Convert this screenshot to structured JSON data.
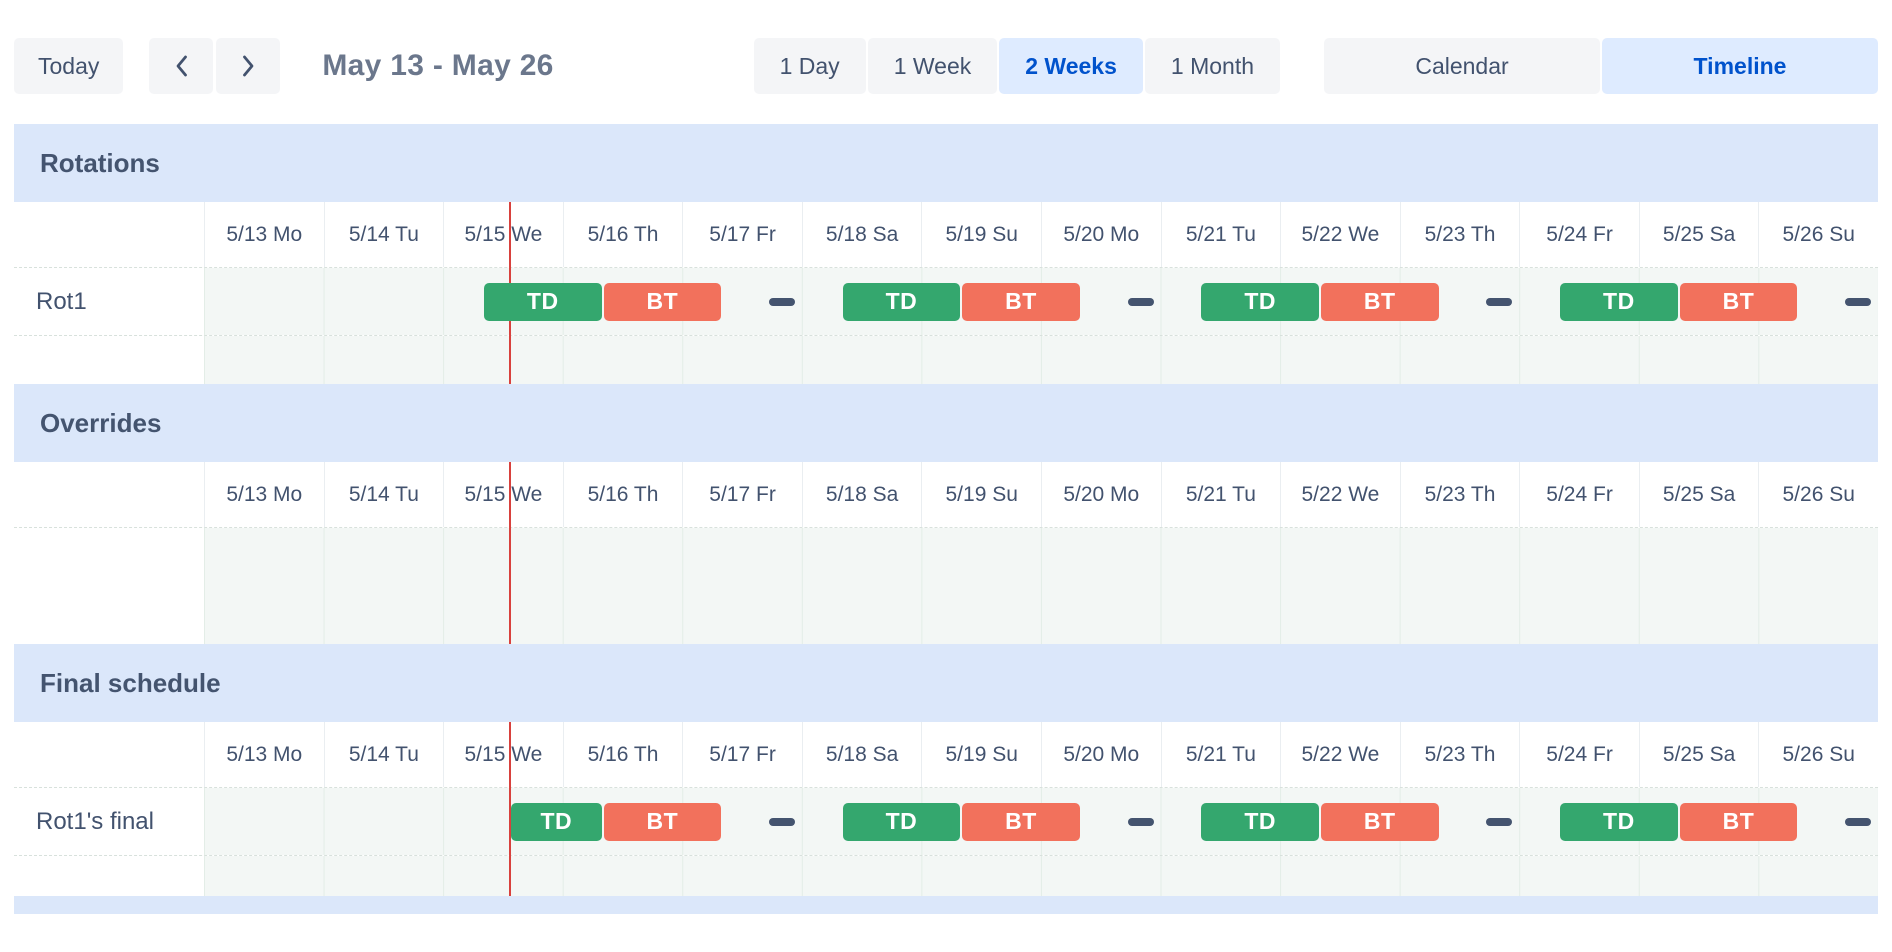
{
  "toolbar": {
    "today_label": "Today",
    "date_range_title": "May 13 - May 26",
    "zoom_options": [
      {
        "label": "1 Day",
        "selected": false
      },
      {
        "label": "1 Week",
        "selected": false
      },
      {
        "label": "2 Weeks",
        "selected": true
      },
      {
        "label": "1 Month",
        "selected": false
      }
    ],
    "view_options": [
      {
        "label": "Calendar",
        "selected": false
      },
      {
        "label": "Timeline",
        "selected": true
      }
    ]
  },
  "timeline": {
    "total_days": 14,
    "days": [
      "5/13 Mo",
      "5/14 Tu",
      "5/15 We",
      "5/16 Th",
      "5/17 Fr",
      "5/18 Sa",
      "5/19 Su",
      "5/20 Mo",
      "5/21 Tu",
      "5/22 We",
      "5/23 Th",
      "5/24 Fr",
      "5/25 Sa",
      "5/26 Su"
    ],
    "now_marker_day_offset": 2.55
  },
  "sections": [
    {
      "title": "Rotations",
      "rows": [
        {
          "label": "Rot1",
          "shifts": [
            {
              "type": "bar",
              "label": "TD",
              "color": "green",
              "start": 2.333,
              "end": 3.333
            },
            {
              "type": "bar",
              "label": "BT",
              "color": "orange",
              "start": 3.333,
              "end": 4.333
            },
            {
              "type": "gap",
              "center": 4.833
            },
            {
              "type": "bar",
              "label": "TD",
              "color": "green",
              "start": 5.333,
              "end": 6.333
            },
            {
              "type": "bar",
              "label": "BT",
              "color": "orange",
              "start": 6.333,
              "end": 7.333
            },
            {
              "type": "gap",
              "center": 7.833
            },
            {
              "type": "bar",
              "label": "TD",
              "color": "green",
              "start": 8.333,
              "end": 9.333
            },
            {
              "type": "bar",
              "label": "BT",
              "color": "orange",
              "start": 9.333,
              "end": 10.333
            },
            {
              "type": "gap",
              "center": 10.833
            },
            {
              "type": "bar",
              "label": "TD",
              "color": "green",
              "start": 11.333,
              "end": 12.333
            },
            {
              "type": "bar",
              "label": "BT",
              "color": "orange",
              "start": 12.333,
              "end": 13.333
            },
            {
              "type": "gap",
              "center": 13.833
            }
          ]
        }
      ]
    },
    {
      "title": "Overrides",
      "rows": []
    },
    {
      "title": "Final schedule",
      "rows": [
        {
          "label": "Rot1's final",
          "shifts": [
            {
              "type": "bar",
              "label": "TD",
              "color": "green",
              "start": 2.56,
              "end": 3.333
            },
            {
              "type": "bar",
              "label": "BT",
              "color": "orange",
              "start": 3.333,
              "end": 4.333
            },
            {
              "type": "gap",
              "center": 4.833
            },
            {
              "type": "bar",
              "label": "TD",
              "color": "green",
              "start": 5.333,
              "end": 6.333
            },
            {
              "type": "bar",
              "label": "BT",
              "color": "orange",
              "start": 6.333,
              "end": 7.333
            },
            {
              "type": "gap",
              "center": 7.833
            },
            {
              "type": "bar",
              "label": "TD",
              "color": "green",
              "start": 8.333,
              "end": 9.333
            },
            {
              "type": "bar",
              "label": "BT",
              "color": "orange",
              "start": 9.333,
              "end": 10.333
            },
            {
              "type": "gap",
              "center": 10.833
            },
            {
              "type": "bar",
              "label": "TD",
              "color": "green",
              "start": 11.333,
              "end": 12.333
            },
            {
              "type": "bar",
              "label": "BT",
              "color": "orange",
              "start": 12.333,
              "end": 13.333
            },
            {
              "type": "gap",
              "center": 13.833
            }
          ]
        }
      ]
    }
  ],
  "colors": {
    "section_band": "#DBE7FA",
    "shift_green": "#34A76E",
    "shift_orange": "#F2715C",
    "gap_dash": "#44546F",
    "now_line": "#D8413D",
    "selected_bg": "#DEEBFF",
    "selected_text": "#0052CC"
  }
}
